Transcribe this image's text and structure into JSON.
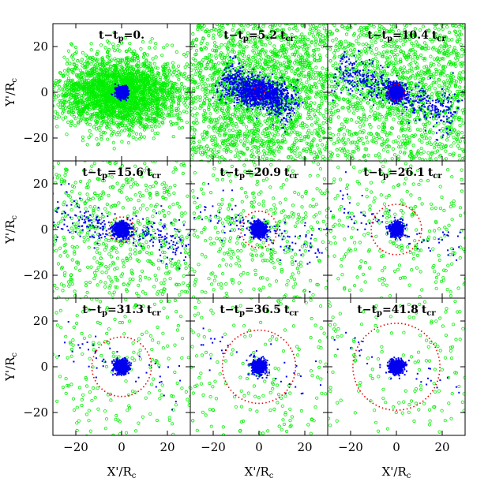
{
  "chart_data": {
    "type": "scatter",
    "layout": "3x3 small multiples",
    "xlabel": "X'/R",
    "xlabel_sub": "c",
    "ylabel": "Y'/R",
    "ylabel_sub": "c",
    "xlim": [
      -30,
      30
    ],
    "ylim": [
      -30,
      30
    ],
    "xticks": [
      -20,
      0,
      20
    ],
    "yticks": [
      -20,
      0,
      20
    ],
    "xtick_labels": [
      "−20",
      "0",
      "20"
    ],
    "ytick_labels": [
      "−20",
      "0",
      "20"
    ],
    "grid": false,
    "colors": {
      "halo_points": "#00ee00",
      "core_points": "#0000ee",
      "ring": "#ee0000"
    },
    "panels": [
      {
        "label_prefix": "t−t",
        "label_sub": "p",
        "label_value": "=0.",
        "label_unit": "",
        "label_unit_sub": "",
        "ring_radius": 0,
        "core_radius": 2.2,
        "halo_spread": [
          13,
          8
        ],
        "halo_count": 2600,
        "tail_angle_deg": 0,
        "tail_length": 0,
        "tail_count": 0
      },
      {
        "label_prefix": "t−t",
        "label_sub": "p",
        "label_value": "=5.2",
        "label_unit": "t",
        "label_unit_sub": "cr",
        "ring_radius": 2.5,
        "core_radius": 8,
        "halo_spread": [
          16,
          12
        ],
        "halo_count": 2200,
        "tail_angle_deg": -25,
        "tail_length": 18,
        "tail_count": 500
      },
      {
        "label_prefix": "t−t",
        "label_sub": "p",
        "label_value": "=10.4",
        "label_unit": "t",
        "label_unit_sub": "cr",
        "ring_radius": 3.5,
        "core_radius": 3,
        "halo_spread": [
          20,
          14
        ],
        "halo_count": 1600,
        "tail_angle_deg": -22,
        "tail_length": 28,
        "tail_count": 500
      },
      {
        "label_prefix": "t−t",
        "label_sub": "p",
        "label_value": "=15.6",
        "label_unit": "t",
        "label_unit_sub": "cr",
        "ring_radius": 5.5,
        "core_radius": 3,
        "halo_spread": [
          20,
          16
        ],
        "halo_count": 650,
        "tail_angle_deg": -12,
        "tail_length": 30,
        "tail_count": 260
      },
      {
        "label_prefix": "t−t",
        "label_sub": "p",
        "label_value": "=20.9",
        "label_unit": "t",
        "label_unit_sub": "cr",
        "ring_radius": 8,
        "core_radius": 2.8,
        "halo_spread": [
          20,
          17
        ],
        "halo_count": 430,
        "tail_angle_deg": -18,
        "tail_length": 30,
        "tail_count": 110
      },
      {
        "label_prefix": "t−t",
        "label_sub": "p",
        "label_value": "=26.1",
        "label_unit": "t",
        "label_unit_sub": "cr",
        "ring_radius": 11,
        "core_radius": 2.6,
        "halo_spread": [
          20,
          18
        ],
        "halo_count": 300,
        "tail_angle_deg": -20,
        "tail_length": 30,
        "tail_count": 70
      },
      {
        "label_prefix": "t−t",
        "label_sub": "p",
        "label_value": "=31.3",
        "label_unit": "t",
        "label_unit_sub": "cr",
        "ring_radius": 13,
        "core_radius": 2.6,
        "halo_spread": [
          20,
          18
        ],
        "halo_count": 230,
        "tail_angle_deg": -20,
        "tail_length": 30,
        "tail_count": 45
      },
      {
        "label_prefix": "t−t",
        "label_sub": "p",
        "label_value": "=36.5",
        "label_unit": "t",
        "label_unit_sub": "cr",
        "ring_radius": 16,
        "core_radius": 2.6,
        "halo_spread": [
          20,
          18
        ],
        "halo_count": 190,
        "tail_angle_deg": -20,
        "tail_length": 30,
        "tail_count": 40
      },
      {
        "label_prefix": "t−t",
        "label_sub": "p",
        "label_value": "=41.8",
        "label_unit": "t",
        "label_unit_sub": "cr",
        "ring_radius": 19,
        "core_radius": 2.6,
        "halo_spread": [
          20,
          18
        ],
        "halo_count": 170,
        "tail_angle_deg": -20,
        "tail_length": 30,
        "tail_count": 35
      }
    ]
  }
}
